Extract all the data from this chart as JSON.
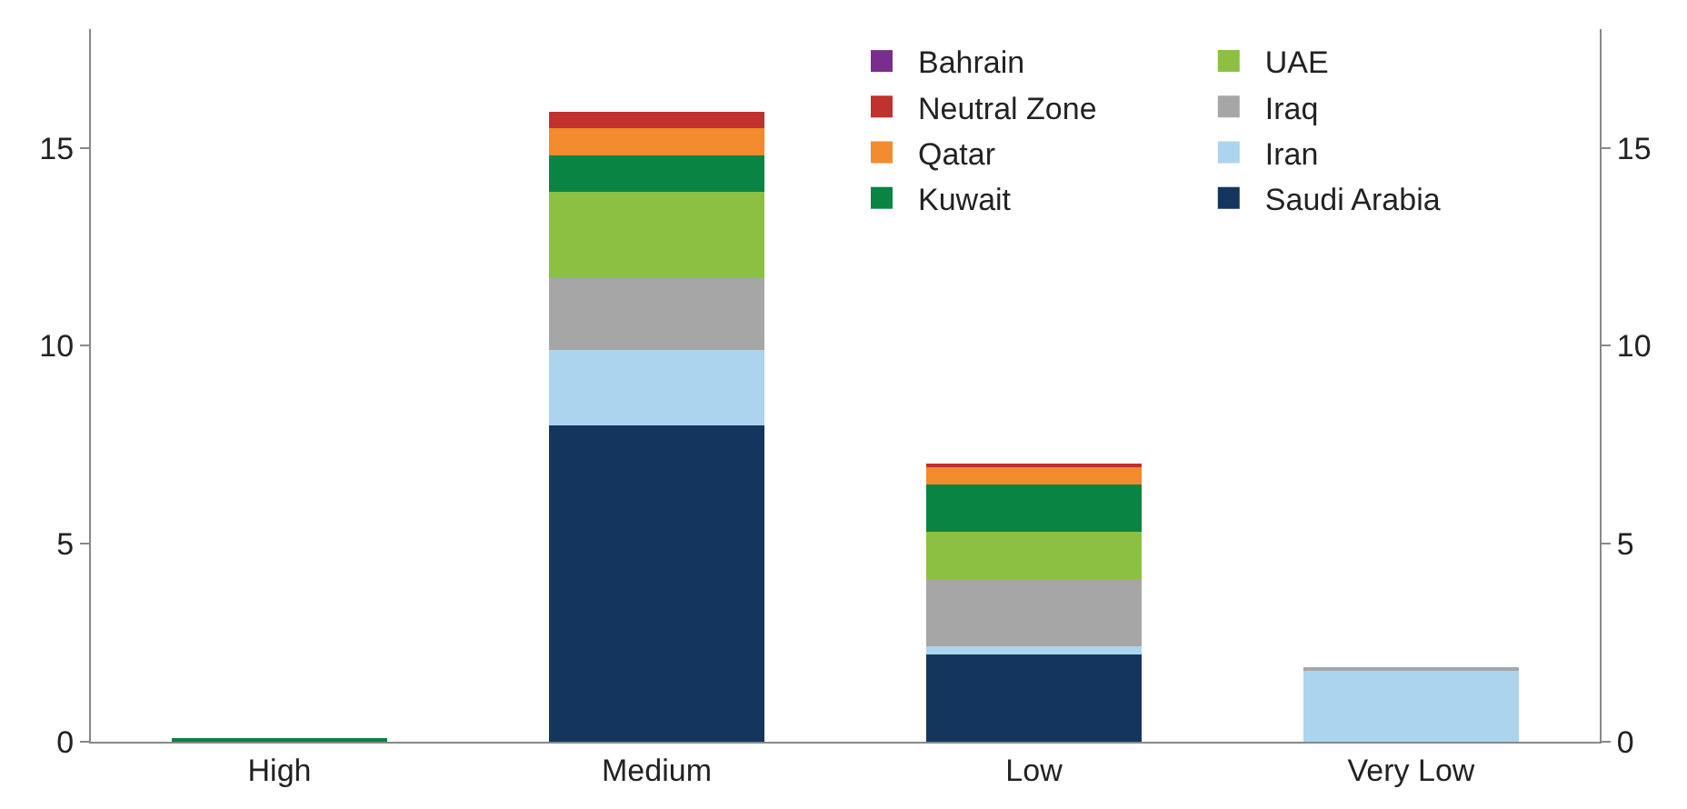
{
  "chart_data": {
    "type": "bar",
    "stacked": true,
    "categories": [
      "High",
      "Medium",
      "Low",
      "Very Low"
    ],
    "series": [
      {
        "name": "Saudi Arabia",
        "color": "#14365e",
        "values": [
          0,
          8.0,
          2.2,
          0
        ]
      },
      {
        "name": "Iran",
        "color": "#acd4ee",
        "values": [
          0,
          1.9,
          0.2,
          1.8
        ]
      },
      {
        "name": "Iraq",
        "color": "#a6a6a6",
        "values": [
          0,
          1.8,
          1.7,
          0.05
        ]
      },
      {
        "name": "UAE",
        "color": "#8cc043",
        "values": [
          0,
          2.2,
          1.2,
          0
        ]
      },
      {
        "name": "Kuwait",
        "color": "#0a8443",
        "values": [
          0.05,
          0.9,
          1.2,
          0
        ]
      },
      {
        "name": "Qatar",
        "color": "#f28a2e",
        "values": [
          0,
          0.7,
          0.45,
          0
        ]
      },
      {
        "name": "Neutral Zone",
        "color": "#c0312f",
        "values": [
          0,
          0.4,
          0.05,
          0
        ]
      },
      {
        "name": "Bahrain",
        "color": "#7b2d8e",
        "values": [
          0,
          0,
          0,
          0
        ]
      }
    ],
    "ylim": [
      0,
      18
    ],
    "yticks": [
      0,
      5,
      10,
      15
    ],
    "y2lim": [
      0,
      18
    ],
    "y2ticks": [
      0,
      5,
      10,
      15
    ],
    "legend": "top right"
  }
}
